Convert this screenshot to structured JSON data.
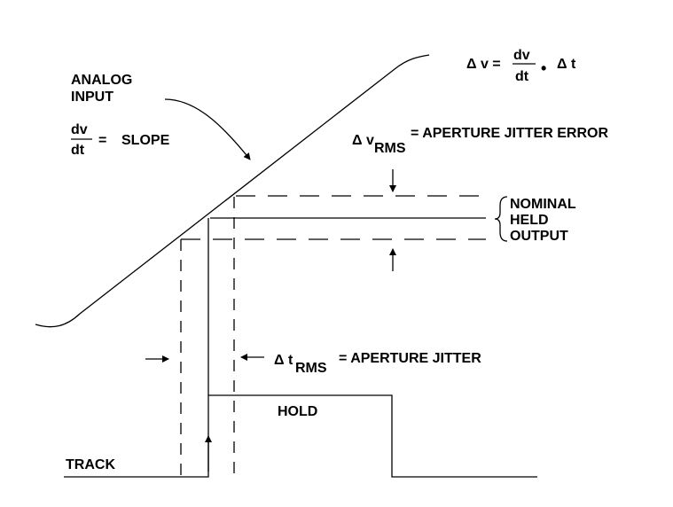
{
  "labels": {
    "analog_input_1": "ANALOG",
    "analog_input_2": "INPUT",
    "dv": "dv",
    "dt": "dt",
    "slope_eq": "=",
    "slope": "SLOPE",
    "eq_dv_left": "Δ v =",
    "eq_dv_num": "dv",
    "eq_dv_den": "dt",
    "eq_dot": "•",
    "eq_dt": "Δ t",
    "delta_v": "Δ v",
    "rms_v": "RMS",
    "jitter_error": "=  APERTURE JITTER ERROR",
    "nominal": "NOMINAL",
    "held": "HELD",
    "output": "OUTPUT",
    "delta_t": "Δ t",
    "rms_t": "RMS",
    "aperture_jitter": "= APERTURE JITTER",
    "hold": "HOLD",
    "track": "TRACK"
  }
}
